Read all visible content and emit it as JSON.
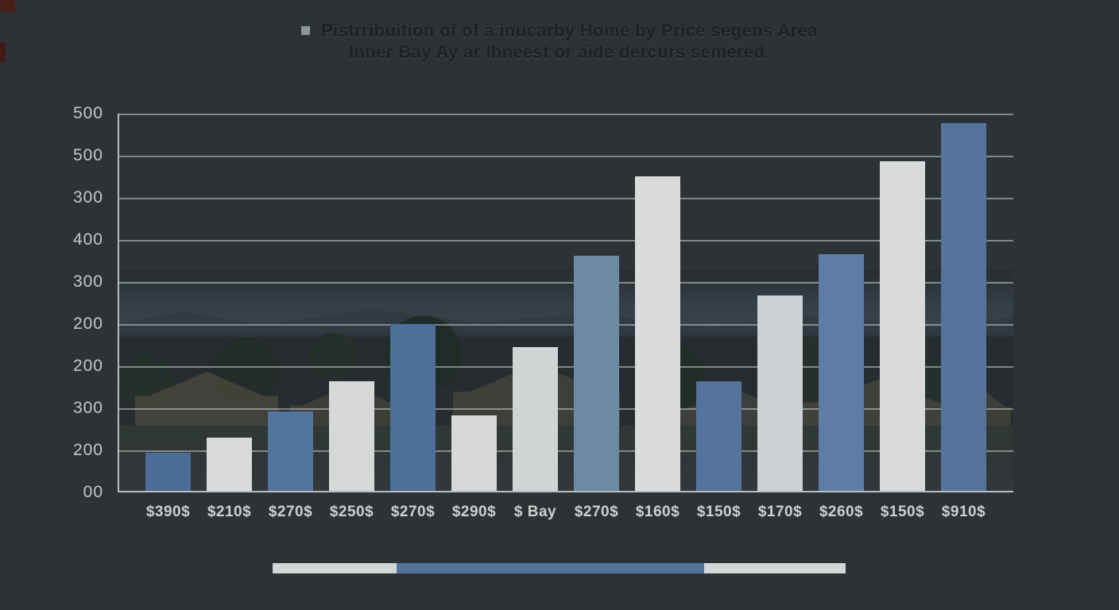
{
  "title": {
    "bullet_color": "#8d9698",
    "line1": "Pistrribuition of of a inucarby Home by Price segens Area",
    "line2": "Inner Bay Ay ar Ihneest or aide dercurs semered."
  },
  "chart_data": {
    "type": "bar",
    "title": "Pistrribuition of of a inucarby Home by Price segens Area — Inner Bay Ay ar Ihneest or aide dercurs semered.",
    "categories": [
      "$390$",
      "$210$",
      "$270$",
      "$250$",
      "$270$",
      "$290$",
      "$ Bay",
      "$270$",
      "$160$",
      "$150$",
      "$170$",
      "$260$",
      "$150$",
      "$910$"
    ],
    "values": [
      50,
      70,
      105,
      145,
      220,
      100,
      190,
      310,
      415,
      145,
      258,
      312,
      435,
      485
    ],
    "bar_colors": [
      "#4d6d99",
      "#d8dbd9",
      "#52749f",
      "#d5d8d7",
      "#4f6f9b",
      "#d6d9d8",
      "#cfd4d4",
      "#6e89a6",
      "#d9dcda",
      "#54739d",
      "#ccd2d3",
      "#5d7ca6",
      "#d7dad9",
      "#55749d"
    ],
    "y_tick_labels": [
      "500",
      "500",
      "300",
      "400",
      "300",
      "200",
      "200",
      "300",
      "200",
      "00"
    ],
    "ylim": [
      0,
      500
    ],
    "grid": true,
    "legend_position": "none",
    "xlabel": "",
    "ylabel": ""
  },
  "colors": {
    "background": "#2c3235",
    "axis_line": "#b9bebd",
    "grid_line": "#cbd1d0",
    "y_tick_text": "#c5c9c8",
    "x_tick_text": "#ccd0cf",
    "accent_blue": "#54749e",
    "accent_light": "#d3d7d6"
  },
  "footer_bar": {
    "segments": [
      {
        "name": "left",
        "color": "#d3d7d6",
        "width_pct": 21.6
      },
      {
        "name": "middle",
        "color": "#54749e",
        "width_pct": 53.7
      },
      {
        "name": "right",
        "color": "#d3d7d6",
        "width_pct": 24.7
      }
    ]
  }
}
